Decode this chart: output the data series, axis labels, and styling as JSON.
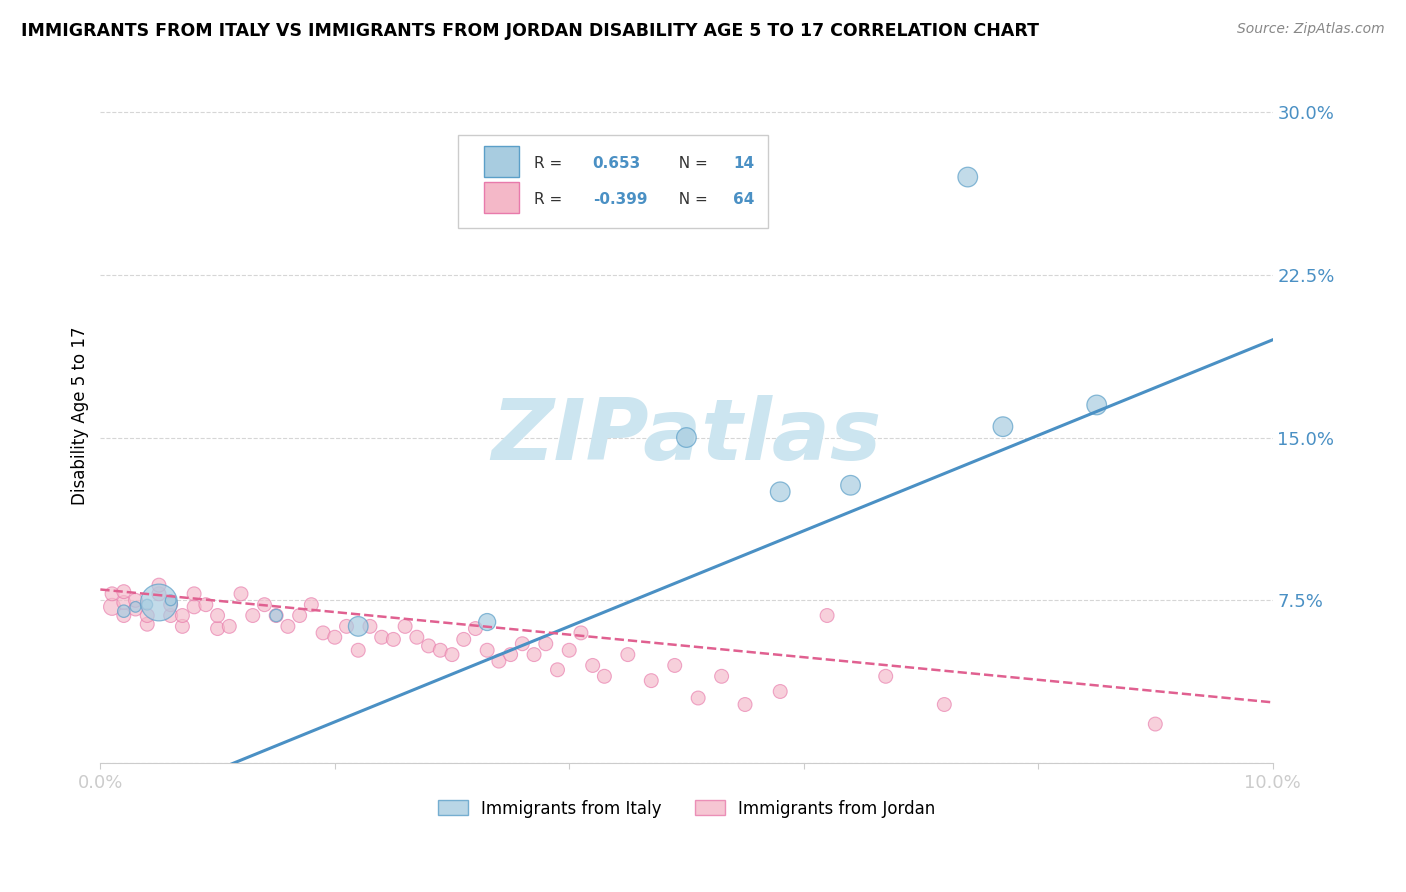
{
  "title": "IMMIGRANTS FROM ITALY VS IMMIGRANTS FROM JORDAN DISABILITY AGE 5 TO 17 CORRELATION CHART",
  "source": "Source: ZipAtlas.com",
  "ylabel": "Disability Age 5 to 17",
  "xlim": [
    0.0,
    0.1
  ],
  "ylim": [
    0.0,
    0.32
  ],
  "yticks": [
    0.0,
    0.075,
    0.15,
    0.225,
    0.3
  ],
  "ytick_labels": [
    "",
    "7.5%",
    "15.0%",
    "22.5%",
    "30.0%"
  ],
  "xtick_labels": [
    "0.0%",
    "10.0%"
  ],
  "xtick_vals": [
    0.0,
    0.1
  ],
  "italy_R": 0.653,
  "italy_N": 14,
  "jordan_R": -0.399,
  "jordan_N": 64,
  "italy_color": "#a8cce0",
  "jordan_color": "#f4b8c8",
  "italy_edge_color": "#5b9fc8",
  "jordan_edge_color": "#e87aab",
  "italy_line_color": "#4a90c4",
  "jordan_line_color": "#e06090",
  "tick_color": "#4a90c4",
  "watermark_color": "#cce5f0",
  "background_color": "#ffffff",
  "italy_x": [
    0.002,
    0.003,
    0.004,
    0.005,
    0.006,
    0.015,
    0.022,
    0.033,
    0.05,
    0.058,
    0.064,
    0.074,
    0.077,
    0.085
  ],
  "italy_y": [
    0.07,
    0.072,
    0.073,
    0.074,
    0.075,
    0.068,
    0.063,
    0.065,
    0.15,
    0.125,
    0.128,
    0.27,
    0.155,
    0.165
  ],
  "italy_sizes": [
    80,
    60,
    60,
    700,
    60,
    80,
    200,
    150,
    200,
    200,
    200,
    200,
    200,
    200
  ],
  "jordan_x": [
    0.001,
    0.001,
    0.002,
    0.002,
    0.002,
    0.003,
    0.003,
    0.004,
    0.004,
    0.005,
    0.005,
    0.006,
    0.006,
    0.007,
    0.007,
    0.008,
    0.008,
    0.009,
    0.01,
    0.01,
    0.011,
    0.012,
    0.013,
    0.014,
    0.015,
    0.016,
    0.017,
    0.018,
    0.019,
    0.02,
    0.021,
    0.022,
    0.023,
    0.024,
    0.025,
    0.026,
    0.027,
    0.028,
    0.029,
    0.03,
    0.031,
    0.032,
    0.033,
    0.034,
    0.035,
    0.036,
    0.037,
    0.038,
    0.039,
    0.04,
    0.041,
    0.042,
    0.043,
    0.045,
    0.047,
    0.049,
    0.051,
    0.053,
    0.055,
    0.058,
    0.062,
    0.067,
    0.072,
    0.09
  ],
  "jordan_y": [
    0.072,
    0.078,
    0.068,
    0.074,
    0.079,
    0.071,
    0.075,
    0.064,
    0.068,
    0.078,
    0.082,
    0.068,
    0.073,
    0.063,
    0.068,
    0.072,
    0.078,
    0.073,
    0.062,
    0.068,
    0.063,
    0.078,
    0.068,
    0.073,
    0.068,
    0.063,
    0.068,
    0.073,
    0.06,
    0.058,
    0.063,
    0.052,
    0.063,
    0.058,
    0.057,
    0.063,
    0.058,
    0.054,
    0.052,
    0.05,
    0.057,
    0.062,
    0.052,
    0.047,
    0.05,
    0.055,
    0.05,
    0.055,
    0.043,
    0.052,
    0.06,
    0.045,
    0.04,
    0.05,
    0.038,
    0.045,
    0.03,
    0.04,
    0.027,
    0.033,
    0.068,
    0.04,
    0.027,
    0.018
  ],
  "jordan_sizes": [
    150,
    100,
    100,
    100,
    100,
    100,
    100,
    100,
    100,
    100,
    100,
    100,
    100,
    100,
    100,
    100,
    100,
    100,
    100,
    100,
    100,
    100,
    100,
    100,
    100,
    100,
    100,
    100,
    100,
    100,
    100,
    100,
    100,
    100,
    100,
    100,
    100,
    100,
    100,
    100,
    100,
    100,
    100,
    100,
    100,
    100,
    100,
    100,
    100,
    100,
    100,
    100,
    100,
    100,
    100,
    100,
    100,
    100,
    100,
    100,
    100,
    100,
    100,
    100
  ],
  "italy_trend": [
    -0.025,
    0.195
  ],
  "jordan_trend": [
    0.08,
    0.028
  ]
}
